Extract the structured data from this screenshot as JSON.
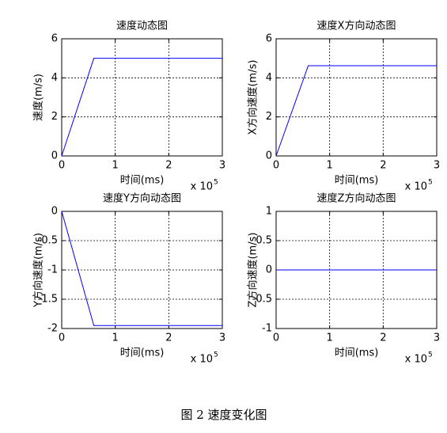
{
  "chart_data": [
    {
      "type": "line",
      "title": "速度动态图",
      "xlabel": "时间(ms)",
      "ylabel": "速度(m/s)",
      "x_scale_label": "x 10",
      "x_scale_exponent": "5",
      "x": [
        0,
        0.6,
        3
      ],
      "values": [
        0,
        5,
        5
      ],
      "color": "#0000ff",
      "xlim": [
        0,
        3
      ],
      "xticks": [
        0,
        1,
        2,
        3
      ],
      "ylim": [
        0,
        6
      ],
      "yticks": [
        0,
        2,
        4,
        6
      ],
      "grid": true
    },
    {
      "type": "line",
      "title": "速度X方向动态图",
      "xlabel": "时间(ms)",
      "ylabel": "X方向速度(m/s)",
      "x_scale_label": "x 10",
      "x_scale_exponent": "5",
      "x": [
        0,
        0.6,
        3
      ],
      "values": [
        0,
        4.62,
        4.62
      ],
      "color": "#0000ff",
      "xlim": [
        0,
        3
      ],
      "xticks": [
        0,
        1,
        2,
        3
      ],
      "ylim": [
        0,
        6
      ],
      "yticks": [
        0,
        2,
        4,
        6
      ],
      "grid": true
    },
    {
      "type": "line",
      "title": "速度Y方向动态图",
      "xlabel": "时间(ms)",
      "ylabel": "Y方向速度(m/s)",
      "x_scale_label": "x 10",
      "x_scale_exponent": "5",
      "x": [
        0,
        0.6,
        3
      ],
      "values": [
        0,
        -1.95,
        -1.95
      ],
      "color": "#0000ff",
      "xlim": [
        0,
        3
      ],
      "xticks": [
        0,
        1,
        2,
        3
      ],
      "ylim": [
        -2,
        0
      ],
      "yticks": [
        -2,
        -1.5,
        -1,
        -0.5,
        0
      ],
      "grid": true
    },
    {
      "type": "line",
      "title": "速度Z方向动态图",
      "xlabel": "时间(ms)",
      "ylabel": "Z方向速度(m/s)",
      "x_scale_label": "x 10",
      "x_scale_exponent": "5",
      "x": [
        0,
        3
      ],
      "values": [
        0,
        0
      ],
      "color": "#0000ff",
      "xlim": [
        0,
        3
      ],
      "xticks": [
        0,
        1,
        2,
        3
      ],
      "ylim": [
        -1,
        1
      ],
      "yticks": [
        -1,
        -0.5,
        0,
        0.5,
        1
      ],
      "grid": true
    }
  ],
  "caption": "图 2  速度变化图"
}
